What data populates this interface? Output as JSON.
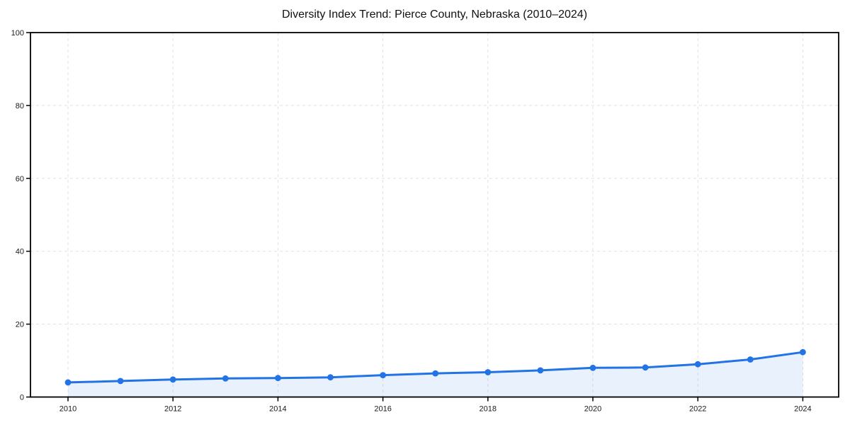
{
  "chart_data": {
    "type": "line",
    "title": "Diversity Index Trend: Pierce County, Nebraska (2010–2024)",
    "x": [
      2010,
      2011,
      2012,
      2013,
      2014,
      2015,
      2016,
      2017,
      2018,
      2019,
      2020,
      2021,
      2022,
      2023,
      2024
    ],
    "series": [
      {
        "name": "Diversity Index",
        "values": [
          4.0,
          4.4,
          4.8,
          5.1,
          5.2,
          5.4,
          6.0,
          6.5,
          6.8,
          7.3,
          8.0,
          8.1,
          9.0,
          10.3,
          12.3
        ]
      }
    ],
    "xticks": [
      2010,
      2012,
      2014,
      2016,
      2018,
      2020,
      2022,
      2024
    ],
    "yticks": [
      0,
      20,
      40,
      60,
      80,
      100
    ],
    "ylim": [
      0,
      100
    ],
    "xlabel": "",
    "ylabel": "",
    "grid": true,
    "grid_style": "dashed",
    "legend_position": "none",
    "marker": "circle",
    "area_fill": true,
    "colors": {
      "line": "#2273e6",
      "marker": "#2273e6",
      "area_fill": "#2273e6",
      "area_fill_opacity": 0.1,
      "grid": "#e1e1e1",
      "axis": "#000000",
      "tick_label": "#1a1a1a",
      "title": "#111111",
      "background": "#ffffff"
    }
  }
}
